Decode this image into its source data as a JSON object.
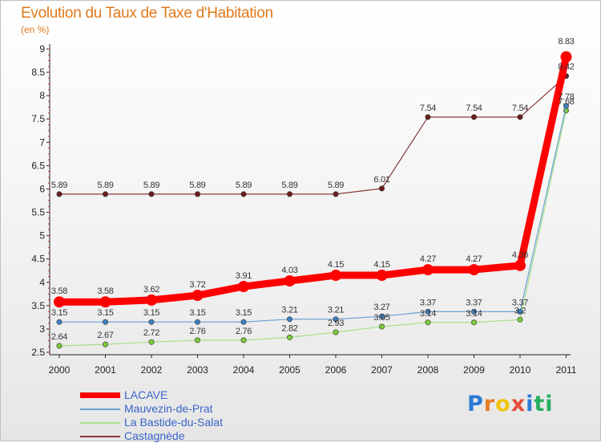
{
  "header": {
    "title": "Evolution du Taux de Taxe d'Habitation",
    "subtitle": "(en %)"
  },
  "logo": {
    "letters": [
      "P",
      "r",
      "o",
      "x",
      "i",
      "t",
      "i"
    ],
    "colors": [
      "#2c7ad6",
      "#e67e22",
      "#f1c40f",
      "#e74c3c",
      "#2c7ad6",
      "#27ae60",
      "#27ae60"
    ]
  },
  "chart_data": {
    "type": "line",
    "x": [
      "2000",
      "2001",
      "2002",
      "2003",
      "2004",
      "2005",
      "2006",
      "2007",
      "2008",
      "2009",
      "2010",
      "2011"
    ],
    "ylim": [
      2.5,
      9
    ],
    "yticks": [
      "2.5",
      "3",
      "3.5",
      "4",
      "4.5",
      "5",
      "5.5",
      "6",
      "6.5",
      "7",
      "7.5",
      "8",
      "8.5",
      "9"
    ],
    "grid": false,
    "legend_position": "bottom-left",
    "series": [
      {
        "name": "LACAVE",
        "color": "#ff0000",
        "marker": "#ff0000",
        "values": [
          3.58,
          3.58,
          3.62,
          3.72,
          3.91,
          4.03,
          4.15,
          4.15,
          4.27,
          4.27,
          4.36,
          8.83
        ],
        "labels": [
          "3.58",
          "3.58",
          "3.62",
          "3.72",
          "3.91",
          "4.03",
          "4.15",
          "4.15",
          "4.27",
          "4.27",
          "4.36",
          "8.83"
        ]
      },
      {
        "name": "Mauvezin-de-Prat",
        "color": "#6a9fd0",
        "marker": "#3f7fbf",
        "values": [
          3.15,
          3.15,
          3.15,
          3.15,
          3.15,
          3.21,
          3.21,
          3.27,
          3.37,
          3.37,
          3.37,
          7.78
        ],
        "labels": [
          "3.15",
          "3.15",
          "3.15",
          "3.15",
          "3.15",
          "3.21",
          "3.21",
          "3.27",
          "3.37",
          "3.37",
          "3.37",
          "7.78"
        ]
      },
      {
        "name": "La Bastide-du-Salat",
        "color": "#a8e08a",
        "marker": "#7acb3a",
        "values": [
          2.64,
          2.67,
          2.72,
          2.76,
          2.76,
          2.82,
          2.93,
          3.05,
          3.14,
          3.14,
          3.2,
          7.68
        ],
        "labels": [
          "2.64",
          "2.67",
          "2.72",
          "2.76",
          "2.76",
          "2.82",
          "2.93",
          "3.05",
          "3.14",
          "3.14",
          "3.2",
          "7.68"
        ]
      },
      {
        "name": "Castagnède",
        "color": "#8b3a3a",
        "marker": "#6b1d1d",
        "values": [
          5.89,
          5.89,
          5.89,
          5.89,
          5.89,
          5.89,
          5.89,
          6.01,
          7.54,
          7.54,
          7.54,
          8.42
        ],
        "labels": [
          "5.89",
          "5.89",
          "5.89",
          "5.89",
          "5.89",
          "5.89",
          "5.89",
          "6.01",
          "7.54",
          "7.54",
          "7.54",
          "8.42"
        ]
      }
    ]
  }
}
